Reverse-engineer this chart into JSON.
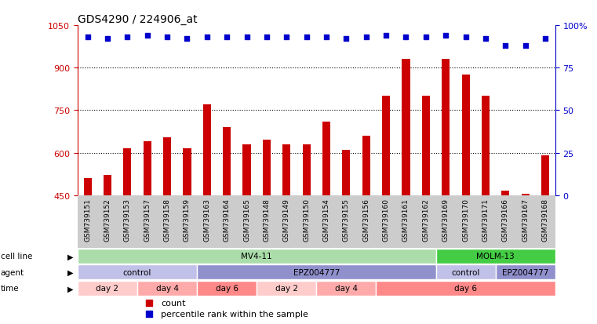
{
  "title": "GDS4290 / 224906_at",
  "samples": [
    "GSM739151",
    "GSM739152",
    "GSM739153",
    "GSM739157",
    "GSM739158",
    "GSM739159",
    "GSM739163",
    "GSM739164",
    "GSM739165",
    "GSM739148",
    "GSM739149",
    "GSM739150",
    "GSM739154",
    "GSM739155",
    "GSM739156",
    "GSM739160",
    "GSM739161",
    "GSM739162",
    "GSM739169",
    "GSM739170",
    "GSM739171",
    "GSM739166",
    "GSM739167",
    "GSM739168"
  ],
  "counts": [
    510,
    520,
    615,
    640,
    655,
    615,
    770,
    690,
    630,
    645,
    630,
    630,
    710,
    610,
    660,
    800,
    930,
    800,
    930,
    875,
    800,
    465,
    455,
    590
  ],
  "percentile_ranks": [
    93,
    92,
    93,
    94,
    93,
    92,
    93,
    93,
    93,
    93,
    93,
    93,
    93,
    92,
    93,
    94,
    93,
    93,
    94,
    93,
    92,
    88,
    88,
    92
  ],
  "ylim_left": [
    450,
    1050
  ],
  "ylim_right": [
    0,
    100
  ],
  "yticks_left": [
    450,
    600,
    750,
    900,
    1050
  ],
  "yticks_right": [
    0,
    25,
    50,
    75,
    100
  ],
  "bar_color": "#cc0000",
  "dot_color": "#0000cc",
  "cell_line_groups": [
    {
      "label": "MV4-11",
      "start": 0,
      "end": 18,
      "color": "#aaddaa"
    },
    {
      "label": "MOLM-13",
      "start": 18,
      "end": 24,
      "color": "#44cc44"
    }
  ],
  "agent_groups": [
    {
      "label": "control",
      "start": 0,
      "end": 6,
      "color": "#c0c0e8"
    },
    {
      "label": "EPZ004777",
      "start": 6,
      "end": 18,
      "color": "#9090cc"
    },
    {
      "label": "control",
      "start": 18,
      "end": 21,
      "color": "#c0c0e8"
    },
    {
      "label": "EPZ004777",
      "start": 21,
      "end": 24,
      "color": "#9090cc"
    }
  ],
  "time_groups": [
    {
      "label": "day 2",
      "start": 0,
      "end": 3,
      "color": "#ffcccc"
    },
    {
      "label": "day 4",
      "start": 3,
      "end": 6,
      "color": "#ffaaaa"
    },
    {
      "label": "day 6",
      "start": 6,
      "end": 9,
      "color": "#ff8888"
    },
    {
      "label": "day 2",
      "start": 9,
      "end": 12,
      "color": "#ffcccc"
    },
    {
      "label": "day 4",
      "start": 12,
      "end": 15,
      "color": "#ffaaaa"
    },
    {
      "label": "day 6",
      "start": 15,
      "end": 24,
      "color": "#ff8888"
    }
  ],
  "row_labels": [
    "cell line",
    "agent",
    "time"
  ],
  "legend_count_label": "count",
  "legend_pct_label": "percentile rank within the sample",
  "background_color": "#ffffff",
  "tick_label_color_left": "#cc0000",
  "tick_label_color_right": "#0000cc",
  "xlabel_bg": "#cccccc",
  "bar_width": 0.4
}
